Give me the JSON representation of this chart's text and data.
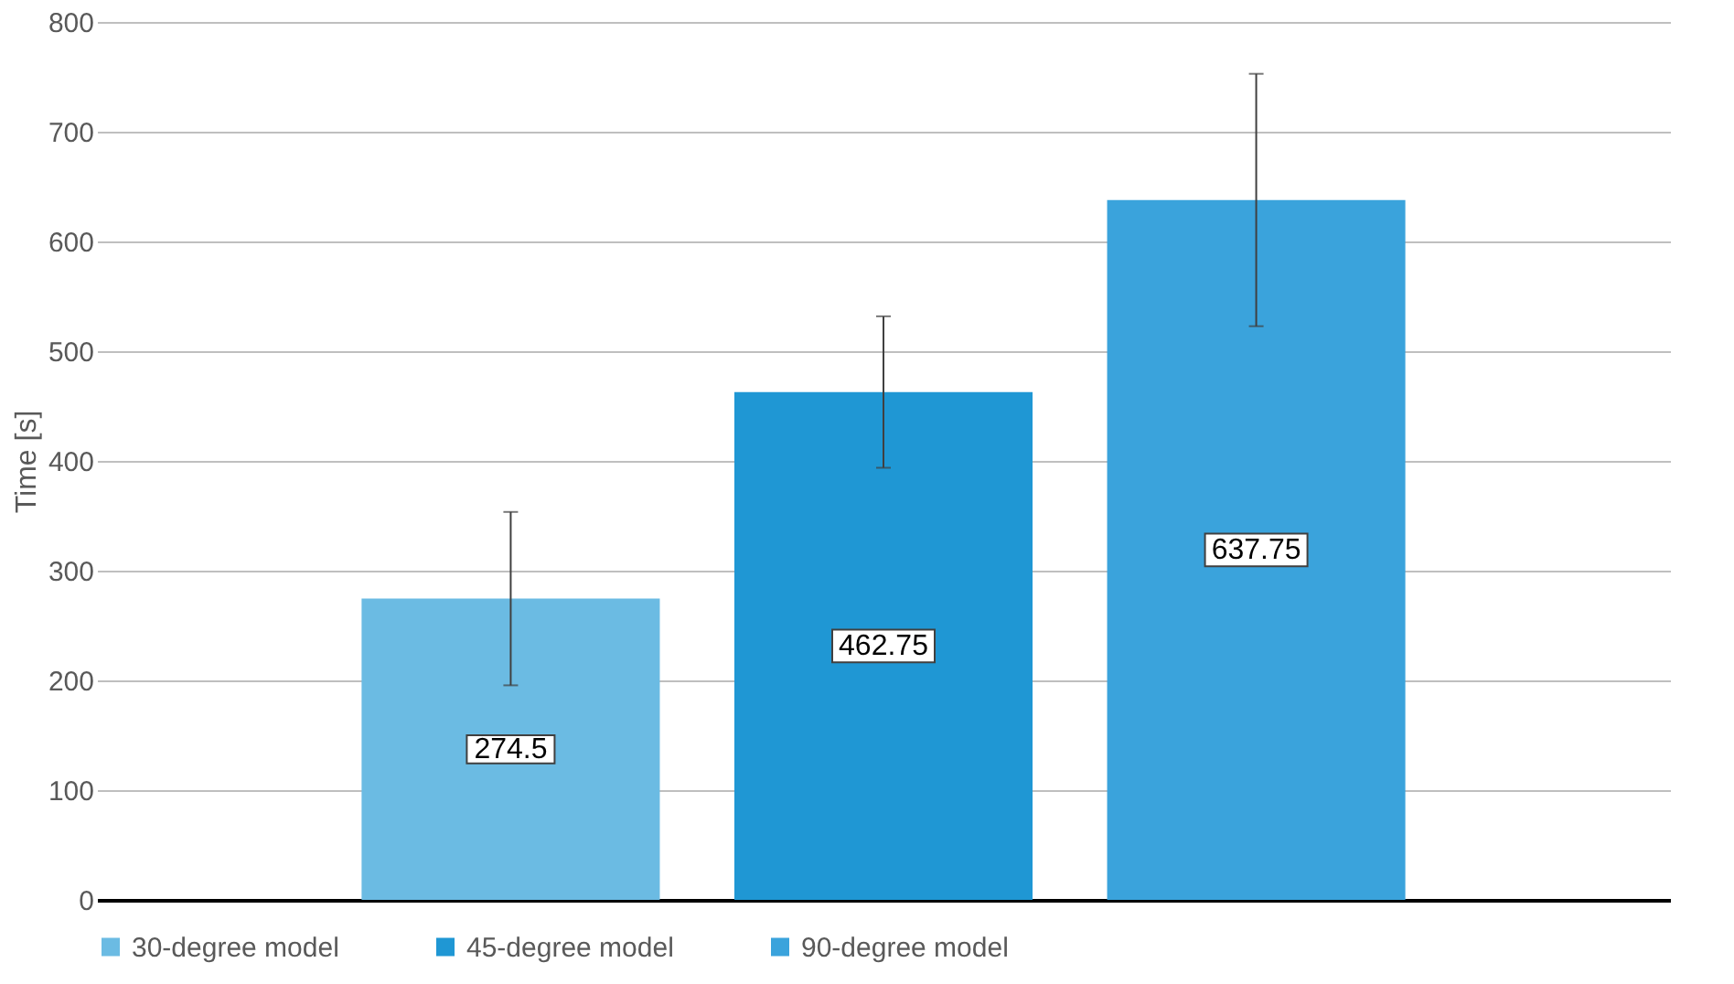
{
  "chart_data": {
    "type": "bar",
    "ylabel": "Time [s]",
    "categories": [
      null,
      null,
      null
    ],
    "series": [
      {
        "name": "30-degree model",
        "color": "#6bbbe3",
        "values": [
          274.5,
          null,
          null
        ],
        "errors": [
          79,
          null,
          null
        ]
      },
      {
        "name": "45-degree model",
        "color": "#1f97d4",
        "values": [
          null,
          462.75,
          null
        ],
        "errors": [
          null,
          69,
          null
        ]
      },
      {
        "name": "90-degree model",
        "color": "#3aa3dc",
        "values": [
          null,
          null,
          637.75
        ],
        "errors": [
          null,
          null,
          115
        ]
      }
    ],
    "ylim": [
      0,
      800
    ],
    "yticks": [
      0,
      100,
      200,
      300,
      400,
      500,
      600,
      700,
      800
    ],
    "grid": "y",
    "legend": "bottom",
    "data_labels": true,
    "tick_labels": "y"
  }
}
